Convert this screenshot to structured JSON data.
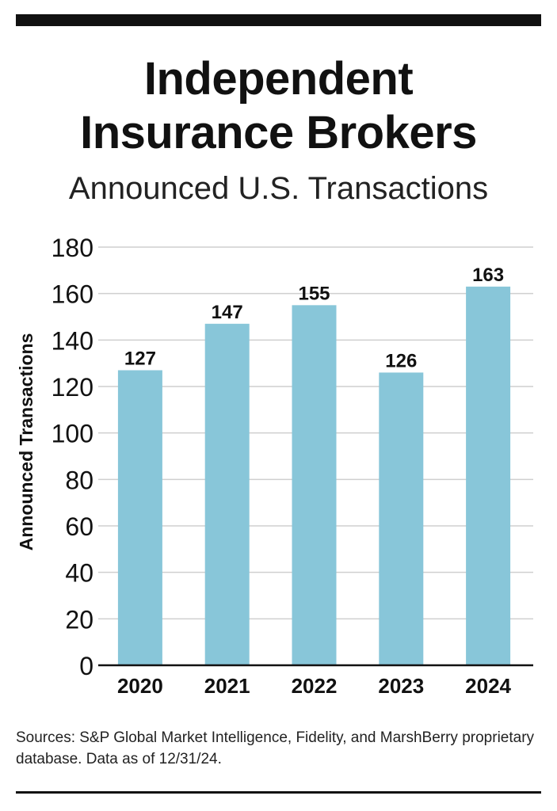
{
  "header": {
    "title_line1": "Independent",
    "title_line2": "Insurance Brokers",
    "subtitle": "Announced U.S. Transactions"
  },
  "chart_data": {
    "type": "bar",
    "title": "Independent Insurance Brokers",
    "subtitle": "Announced U.S. Transactions",
    "xlabel": "",
    "ylabel": "Announced Transactions",
    "categories": [
      "2020",
      "2021",
      "2022",
      "2023",
      "2024"
    ],
    "values": [
      127,
      147,
      155,
      126,
      163
    ],
    "ylim": [
      0,
      180
    ],
    "yticks": [
      0,
      20,
      40,
      60,
      80,
      100,
      120,
      140,
      160,
      180
    ],
    "data_labels": [
      "127",
      "147",
      "155",
      "126",
      "163"
    ],
    "grid": true,
    "bar_color": "#88c6d9"
  },
  "footer": {
    "source_text": "Sources: S&P Global Market Intelligence, Fidelity, and MarshBerry proprietary database. Data as of 12/31/24."
  }
}
